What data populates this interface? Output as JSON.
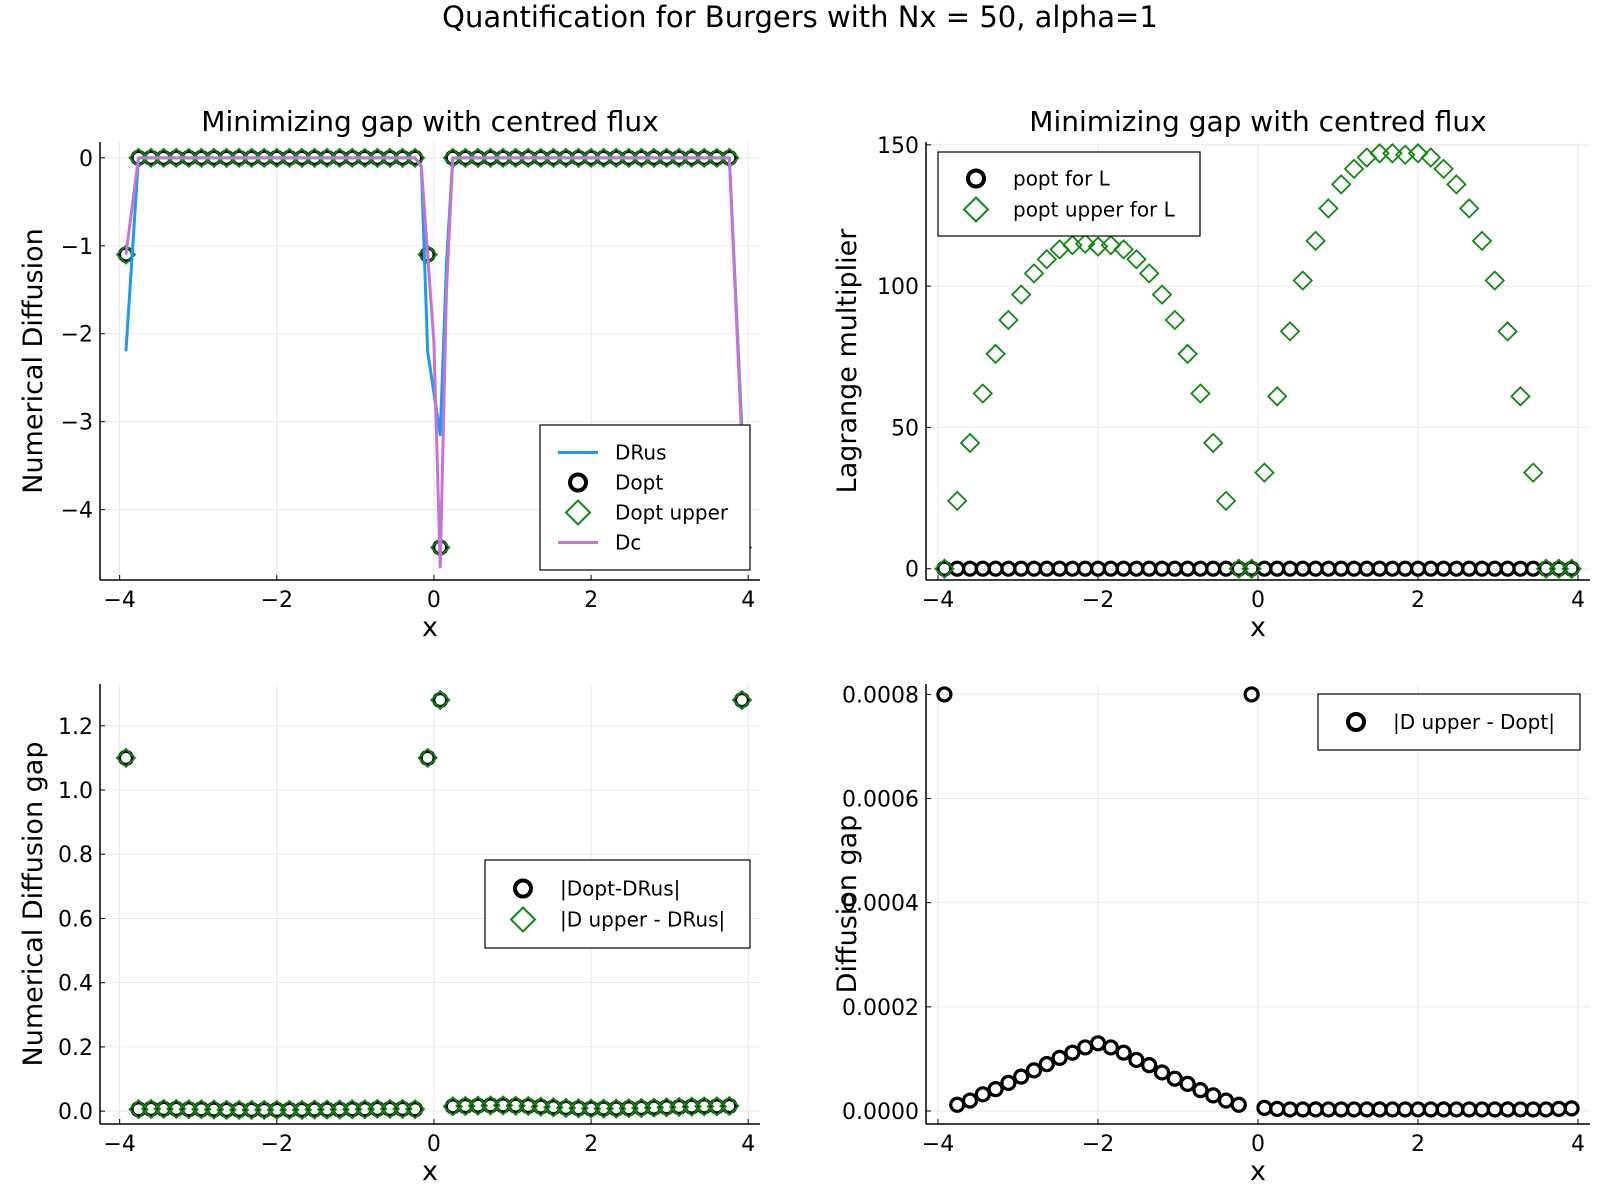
{
  "figure_title": "Quantification for Burgers with Nx = 50, alpha=1",
  "colors": {
    "DRus": "#1e9bf0",
    "Dc": "#c673d6",
    "Dopt": "#000000",
    "upper": "#118811",
    "grid": "#e8e8e8"
  },
  "chart_data": [
    {
      "type": "line",
      "title": "Minimizing gap with centred flux",
      "xlabel": "x",
      "ylabel": "Numerical Diffusion",
      "xlim": [
        -4.25,
        4.15
      ],
      "ylim": [
        -4.8,
        0.18
      ],
      "xticks": [
        -4,
        -2,
        0,
        2,
        4
      ],
      "xtick_labels": [
        "−4",
        "−2",
        "0",
        "2",
        "4"
      ],
      "yticks": [
        -4,
        -3,
        -2,
        -1,
        0
      ],
      "ytick_labels": [
        "−4",
        "−3",
        "−2",
        "−1",
        "0"
      ],
      "grid": true,
      "legend_position": "bottom-right",
      "series": [
        {
          "name": "DRus",
          "kind": "line",
          "color": "#1e9bf0",
          "x": [
            -3.92,
            -3.76,
            -3.6,
            -0.32,
            -0.24,
            -0.16,
            -0.08,
            0.08,
            0.16,
            0.24,
            3.6,
            3.76,
            3.92
          ],
          "y": [
            -2.2,
            0,
            0,
            0,
            0,
            -0.1,
            -2.2,
            -3.15,
            -1.2,
            0,
            0,
            0,
            -3.1
          ]
        },
        {
          "name": "Dopt",
          "kind": "circle",
          "color": "#000000",
          "x": [
            -3.92,
            -3.76,
            -3.6,
            -3.44,
            -3.28,
            -3.12,
            -2.96,
            -2.8,
            -2.64,
            -2.48,
            -2.32,
            -2.16,
            -2.0,
            -1.84,
            -1.68,
            -1.52,
            -1.36,
            -1.2,
            -1.04,
            -0.88,
            -0.72,
            -0.56,
            -0.4,
            -0.24,
            -0.08,
            0.08,
            0.24,
            0.4,
            0.56,
            0.72,
            0.88,
            1.04,
            1.2,
            1.36,
            1.52,
            1.68,
            1.84,
            2.0,
            2.16,
            2.32,
            2.48,
            2.64,
            2.8,
            2.96,
            3.12,
            3.28,
            3.44,
            3.6,
            3.76,
            3.92
          ],
          "y": [
            -1.1,
            0,
            0,
            0,
            0,
            0,
            0,
            0,
            0,
            0,
            0,
            0,
            0,
            0,
            0,
            0,
            0,
            0,
            0,
            0,
            0,
            0,
            0,
            0,
            -1.1,
            -4.43,
            0,
            0,
            0,
            0,
            0,
            0,
            0,
            0,
            0,
            0,
            0,
            0,
            0,
            0,
            0,
            0,
            0,
            0,
            0,
            0,
            0,
            0,
            0,
            -4.43
          ]
        },
        {
          "name": "Dopt upper",
          "kind": "diamond",
          "color": "#118811",
          "x": [
            -3.92,
            -3.76,
            -3.6,
            -3.44,
            -3.28,
            -3.12,
            -2.96,
            -2.8,
            -2.64,
            -2.48,
            -2.32,
            -2.16,
            -2.0,
            -1.84,
            -1.68,
            -1.52,
            -1.36,
            -1.2,
            -1.04,
            -0.88,
            -0.72,
            -0.56,
            -0.4,
            -0.24,
            -0.08,
            0.08,
            0.24,
            0.4,
            0.56,
            0.72,
            0.88,
            1.04,
            1.2,
            1.36,
            1.52,
            1.68,
            1.84,
            2.0,
            2.16,
            2.32,
            2.48,
            2.64,
            2.8,
            2.96,
            3.12,
            3.28,
            3.44,
            3.6,
            3.76,
            3.92
          ],
          "y": [
            -1.1,
            0,
            0,
            0,
            0,
            0,
            0,
            0,
            0,
            0,
            0,
            0,
            0,
            0,
            0,
            0,
            0,
            0,
            0,
            0,
            0,
            0,
            0,
            0,
            -1.1,
            -4.43,
            0,
            0,
            0,
            0,
            0,
            0,
            0,
            0,
            0,
            0,
            0,
            0,
            0,
            0,
            0,
            0,
            0,
            0,
            0,
            0,
            0,
            0,
            0,
            -4.43
          ]
        },
        {
          "name": "Dc",
          "kind": "line",
          "color": "#c673d6",
          "x": [
            -3.92,
            -3.76,
            -3.6,
            -0.32,
            -0.24,
            -0.16,
            -0.08,
            0.0,
            0.08,
            0.16,
            0.24,
            3.6,
            3.76,
            3.92
          ],
          "y": [
            -1.1,
            0,
            0,
            0,
            0,
            -0.1,
            -1.1,
            -2.1,
            -4.65,
            -1.5,
            0,
            0,
            0,
            -3.25
          ]
        }
      ]
    },
    {
      "type": "scatter",
      "title": "Minimizing gap with centred flux",
      "xlabel": "x",
      "ylabel": "Lagrange multiplier",
      "xlim": [
        -4.15,
        4.15
      ],
      "ylim": [
        -4,
        151
      ],
      "xticks": [
        -4,
        -2,
        0,
        2,
        4
      ],
      "xtick_labels": [
        "−4",
        "−2",
        "0",
        "2",
        "4"
      ],
      "yticks": [
        0,
        50,
        100,
        150
      ],
      "ytick_labels": [
        "0",
        "50",
        "100",
        "150"
      ],
      "grid": true,
      "legend_position": "top-left",
      "series": [
        {
          "name": "popt for L",
          "kind": "circle",
          "color": "#000000",
          "x": [
            -3.92,
            -3.76,
            -3.6,
            -3.44,
            -3.28,
            -3.12,
            -2.96,
            -2.8,
            -2.64,
            -2.48,
            -2.32,
            -2.16,
            -2.0,
            -1.84,
            -1.68,
            -1.52,
            -1.36,
            -1.2,
            -1.04,
            -0.88,
            -0.72,
            -0.56,
            -0.4,
            -0.24,
            -0.08,
            0.08,
            0.24,
            0.4,
            0.56,
            0.72,
            0.88,
            1.04,
            1.2,
            1.36,
            1.52,
            1.68,
            1.84,
            2.0,
            2.16,
            2.32,
            2.48,
            2.64,
            2.8,
            2.96,
            3.12,
            3.28,
            3.44,
            3.6,
            3.76,
            3.92
          ],
          "y": [
            0,
            0,
            0,
            0,
            0,
            0,
            0,
            0,
            0,
            0,
            0,
            0,
            0,
            0,
            0,
            0,
            0,
            0,
            0,
            0,
            0,
            0,
            0,
            0,
            0,
            0,
            0,
            0,
            0,
            0,
            0,
            0,
            0,
            0,
            0,
            0,
            0,
            0,
            0,
            0,
            0,
            0,
            0,
            0,
            0,
            0,
            0,
            0,
            0,
            0
          ]
        },
        {
          "name": "popt upper for L",
          "kind": "diamond",
          "color": "#118811",
          "x": [
            -3.92,
            -3.76,
            -3.6,
            -3.44,
            -3.28,
            -3.12,
            -2.96,
            -2.8,
            -2.64,
            -2.48,
            -2.32,
            -2.16,
            -2.0,
            -1.84,
            -1.68,
            -1.52,
            -1.36,
            -1.2,
            -1.04,
            -0.88,
            -0.72,
            -0.56,
            -0.4,
            -0.24,
            -0.08,
            0.08,
            0.24,
            0.4,
            0.56,
            0.72,
            0.88,
            1.04,
            1.2,
            1.36,
            1.52,
            1.68,
            1.84,
            2.0,
            2.16,
            2.32,
            2.48,
            2.64,
            2.8,
            2.96,
            3.12,
            3.28,
            3.44,
            3.6,
            3.76,
            3.92
          ],
          "y": [
            0,
            24,
            44.5,
            62,
            76,
            88,
            97,
            104.5,
            109.5,
            113,
            114.5,
            115,
            114,
            114.5,
            113,
            109.5,
            104.5,
            97,
            88,
            76,
            62,
            44.5,
            24,
            0,
            0,
            34,
            61,
            84,
            102,
            116,
            127.5,
            136,
            141.5,
            145.5,
            147,
            147,
            146.5,
            147,
            145.5,
            141.5,
            136,
            127.5,
            116,
            102,
            84,
            61,
            34,
            0,
            0,
            0
          ]
        }
      ]
    },
    {
      "type": "scatter",
      "title": "",
      "xlabel": "x",
      "ylabel": "Numerical Diffusion gap",
      "xlim": [
        -4.25,
        4.15
      ],
      "ylim": [
        -0.04,
        1.33
      ],
      "xticks": [
        -4,
        -2,
        0,
        2,
        4
      ],
      "xtick_labels": [
        "−4",
        "−2",
        "0",
        "2",
        "4"
      ],
      "yticks": [
        0,
        0.2,
        0.4,
        0.6,
        0.8,
        1.0,
        1.2
      ],
      "ytick_labels": [
        "0.0",
        "0.2",
        "0.4",
        "0.6",
        "0.8",
        "1.0",
        "1.2"
      ],
      "grid": true,
      "legend_position": "right",
      "series": [
        {
          "name": "|Dopt-DRus|",
          "kind": "circle",
          "color": "#000000",
          "x": [
            -3.92,
            -3.76,
            -3.6,
            -3.44,
            -3.28,
            -3.12,
            -2.96,
            -2.8,
            -2.64,
            -2.48,
            -2.32,
            -2.16,
            -2.0,
            -1.84,
            -1.68,
            -1.52,
            -1.36,
            -1.2,
            -1.04,
            -0.88,
            -0.72,
            -0.56,
            -0.4,
            -0.24,
            -0.08,
            0.08,
            0.24,
            0.4,
            0.56,
            0.72,
            0.88,
            1.04,
            1.2,
            1.36,
            1.52,
            1.68,
            1.84,
            2.0,
            2.16,
            2.32,
            2.48,
            2.64,
            2.8,
            2.96,
            3.12,
            3.28,
            3.44,
            3.6,
            3.76,
            3.92
          ],
          "y": [
            1.1,
            0.006,
            0.007,
            0.007,
            0.007,
            0.006,
            0.006,
            0.005,
            0.004,
            0.004,
            0.004,
            0.004,
            0.004,
            0.004,
            0.004,
            0.005,
            0.005,
            0.005,
            0.006,
            0.006,
            0.007,
            0.007,
            0.007,
            0.006,
            1.1,
            1.28,
            0.015,
            0.016,
            0.017,
            0.018,
            0.018,
            0.017,
            0.016,
            0.014,
            0.012,
            0.01,
            0.009,
            0.008,
            0.008,
            0.008,
            0.009,
            0.01,
            0.011,
            0.012,
            0.013,
            0.014,
            0.015,
            0.015,
            0.016,
            1.28
          ]
        },
        {
          "name": "|D upper - DRus|",
          "kind": "diamond",
          "color": "#118811",
          "x": [
            -3.92,
            -3.76,
            -3.6,
            -3.44,
            -3.28,
            -3.12,
            -2.96,
            -2.8,
            -2.64,
            -2.48,
            -2.32,
            -2.16,
            -2.0,
            -1.84,
            -1.68,
            -1.52,
            -1.36,
            -1.2,
            -1.04,
            -0.88,
            -0.72,
            -0.56,
            -0.4,
            -0.24,
            -0.08,
            0.08,
            0.24,
            0.4,
            0.56,
            0.72,
            0.88,
            1.04,
            1.2,
            1.36,
            1.52,
            1.68,
            1.84,
            2.0,
            2.16,
            2.32,
            2.48,
            2.64,
            2.8,
            2.96,
            3.12,
            3.28,
            3.44,
            3.6,
            3.76,
            3.92
          ],
          "y": [
            1.1,
            0.006,
            0.007,
            0.007,
            0.007,
            0.006,
            0.006,
            0.005,
            0.004,
            0.004,
            0.004,
            0.004,
            0.004,
            0.004,
            0.004,
            0.005,
            0.005,
            0.005,
            0.006,
            0.006,
            0.007,
            0.007,
            0.007,
            0.006,
            1.1,
            1.28,
            0.015,
            0.016,
            0.017,
            0.018,
            0.018,
            0.017,
            0.016,
            0.014,
            0.012,
            0.01,
            0.009,
            0.008,
            0.008,
            0.008,
            0.009,
            0.01,
            0.011,
            0.012,
            0.013,
            0.014,
            0.015,
            0.015,
            0.016,
            1.28
          ]
        }
      ]
    },
    {
      "type": "scatter",
      "title": "",
      "xlabel": "x",
      "ylabel": "Diffusion gap",
      "xlim": [
        -4.15,
        4.15
      ],
      "ylim": [
        -2.5e-05,
        0.00082
      ],
      "xticks": [
        -4,
        -2,
        0,
        2,
        4
      ],
      "xtick_labels": [
        "−4",
        "−2",
        "0",
        "2",
        "4"
      ],
      "yticks": [
        0,
        0.0002,
        0.0004,
        0.0006,
        0.0008
      ],
      "ytick_labels": [
        "0.0000",
        "0.0002",
        "0.0004",
        "0.0006",
        "0.0008"
      ],
      "grid": true,
      "legend_position": "top-right",
      "series": [
        {
          "name": "|D upper - Dopt|",
          "kind": "circle",
          "color": "#000000",
          "x": [
            -3.92,
            -3.76,
            -3.6,
            -3.44,
            -3.28,
            -3.12,
            -2.96,
            -2.8,
            -2.64,
            -2.48,
            -2.32,
            -2.16,
            -2.0,
            -1.84,
            -1.68,
            -1.52,
            -1.36,
            -1.2,
            -1.04,
            -0.88,
            -0.72,
            -0.56,
            -0.4,
            -0.24,
            -0.08,
            0.08,
            0.24,
            0.4,
            0.56,
            0.72,
            0.88,
            1.04,
            1.2,
            1.36,
            1.52,
            1.68,
            1.84,
            2.0,
            2.16,
            2.32,
            2.48,
            2.64,
            2.8,
            2.96,
            3.12,
            3.28,
            3.44,
            3.6,
            3.76,
            3.92
          ],
          "y": [
            0.0008,
            1.2e-05,
            2e-05,
            3.2e-05,
            4.2e-05,
            5.4e-05,
            6.6e-05,
            7.8e-05,
            9e-05,
            0.000102,
            0.000112,
            0.000122,
            0.00013,
            0.000122,
            0.000112,
            9.8e-05,
            8.8e-05,
            7.4e-05,
            6.2e-05,
            5.2e-05,
            4e-05,
            3e-05,
            2e-05,
            1.2e-05,
            0.0008,
            6e-06,
            4e-06,
            3e-06,
            3e-06,
            3e-06,
            3e-06,
            3e-06,
            3e-06,
            3e-06,
            3e-06,
            3e-06,
            3e-06,
            3e-06,
            3e-06,
            3e-06,
            3e-06,
            3e-06,
            3e-06,
            3e-06,
            3e-06,
            3e-06,
            3e-06,
            3e-06,
            4e-06,
            5e-06
          ]
        }
      ]
    }
  ]
}
